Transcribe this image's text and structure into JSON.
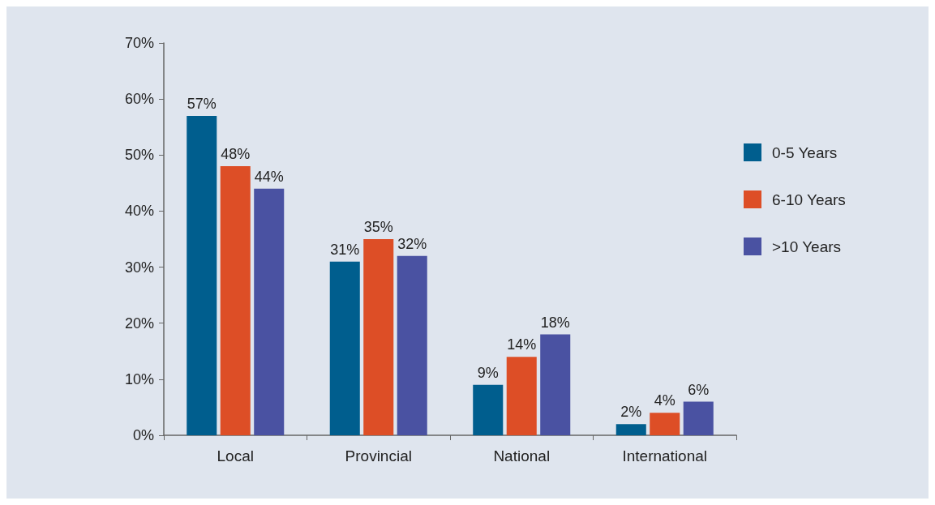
{
  "chart_data": {
    "type": "bar",
    "categories": [
      "Local",
      "Provincial",
      "National",
      "International"
    ],
    "series": [
      {
        "name": "0-5 Years",
        "color": "#005e8e",
        "values": [
          57,
          31,
          9,
          2
        ],
        "value_labels": [
          "57%",
          "31%",
          "9%",
          "2%"
        ]
      },
      {
        "name": "6-10 Years",
        "color": "#dd4e26",
        "values": [
          48,
          35,
          14,
          4
        ],
        "value_labels": [
          "48%",
          "35%",
          "14%",
          "4%"
        ]
      },
      {
        "name": ">10 Years",
        "color": "#4a52a2",
        "values": [
          44,
          32,
          18,
          6
        ],
        "value_labels": [
          "44%",
          "32%",
          "18%",
          "6%"
        ]
      }
    ],
    "ylim": [
      0,
      70
    ],
    "yticks": [
      {
        "value": 0,
        "label": "0%"
      },
      {
        "value": 10,
        "label": "10%"
      },
      {
        "value": 20,
        "label": "20%"
      },
      {
        "value": 30,
        "label": "30%"
      },
      {
        "value": 40,
        "label": "40%"
      },
      {
        "value": 50,
        "label": "50%"
      },
      {
        "value": 60,
        "label": "60%"
      },
      {
        "value": 70,
        "label": "70%"
      }
    ],
    "grid": false,
    "legend": "right"
  }
}
